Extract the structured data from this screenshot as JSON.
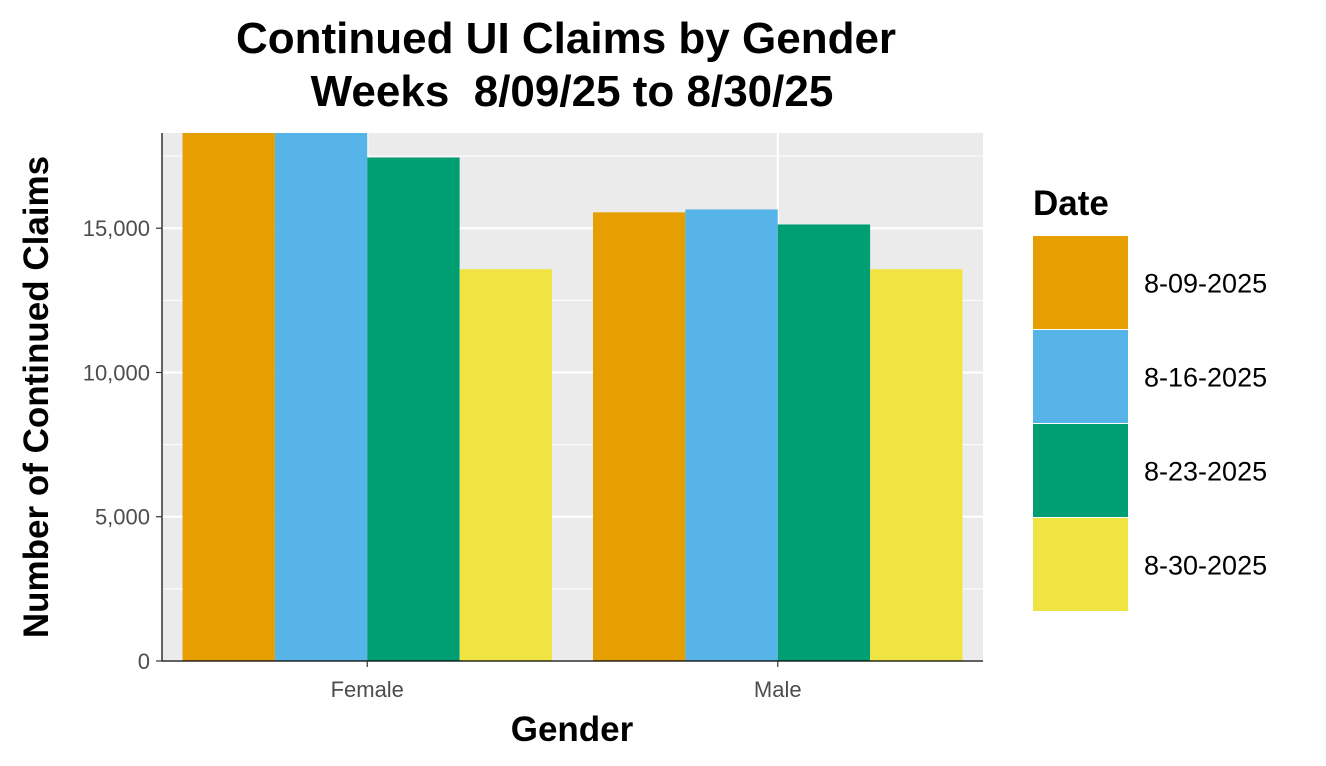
{
  "chart_data": {
    "type": "bar",
    "title": "Continued UI Claims by Gender",
    "subtitle": "Weeks  8/09/25 to 8/30/25",
    "xlabel": "Gender",
    "ylabel": "Number of Continued Claims",
    "categories": [
      "Female",
      "Male"
    ],
    "ylim": [
      0,
      18300
    ],
    "yticks": [
      0,
      5000,
      10000,
      15000
    ],
    "ytick_labels": [
      "0",
      "5,000",
      "10,000",
      "15,000"
    ],
    "legend_title": "Date",
    "legend_position": "right",
    "grid": true,
    "series": [
      {
        "name": "8-09-2025",
        "color": "#E69F00",
        "values": [
          18300,
          15550
        ]
      },
      {
        "name": "8-16-2025",
        "color": "#56B4E9",
        "values": [
          18300,
          15650
        ]
      },
      {
        "name": "8-23-2025",
        "color": "#009E73",
        "values": [
          17450,
          15130
        ]
      },
      {
        "name": "8-30-2025",
        "color": "#F0E442",
        "values": [
          13580,
          13580
        ]
      }
    ]
  }
}
